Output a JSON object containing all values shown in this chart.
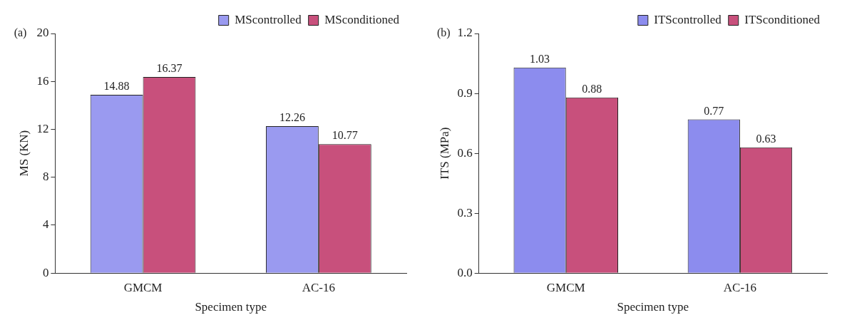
{
  "chart_data": [
    {
      "type": "bar",
      "annotations": [
        "(a)"
      ],
      "xlabel": "Specimen type",
      "ylabel": "MS (KN)",
      "categories": [
        "GMCM",
        "AC-16"
      ],
      "series": [
        {
          "name": "MScontrolled",
          "color": "#9a9af0",
          "values": [
            14.88,
            12.26
          ]
        },
        {
          "name": "MSconditioned",
          "color": "#c8507c",
          "values": [
            16.37,
            10.77
          ]
        }
      ],
      "ylim": [
        0,
        20
      ],
      "yticks": [
        0,
        4,
        8,
        12,
        16,
        20
      ],
      "grid": false,
      "legend": "top right",
      "data_labels": true
    },
    {
      "type": "bar",
      "annotations": [
        "(b)"
      ],
      "xlabel": "Specimen type",
      "ylabel": "ITS (MPa)",
      "categories": [
        "GMCM",
        "AC-16"
      ],
      "series": [
        {
          "name": "ITScontrolled",
          "color": "#8c8cee",
          "values": [
            1.03,
            0.77
          ]
        },
        {
          "name": "ITSconditioned",
          "color": "#c8507c",
          "values": [
            0.88,
            0.63
          ]
        }
      ],
      "ylim": [
        0,
        1.2
      ],
      "yticks": [
        {
          "value": 0,
          "label": "0.0"
        },
        {
          "value": 0.3,
          "label": "0.3"
        },
        {
          "value": 0.6,
          "label": "0.6"
        },
        {
          "value": 0.9,
          "label": "0.9"
        },
        {
          "value": 1.2,
          "label": "1.2"
        }
      ],
      "grid": false,
      "legend": "top right",
      "data_labels": true
    }
  ]
}
